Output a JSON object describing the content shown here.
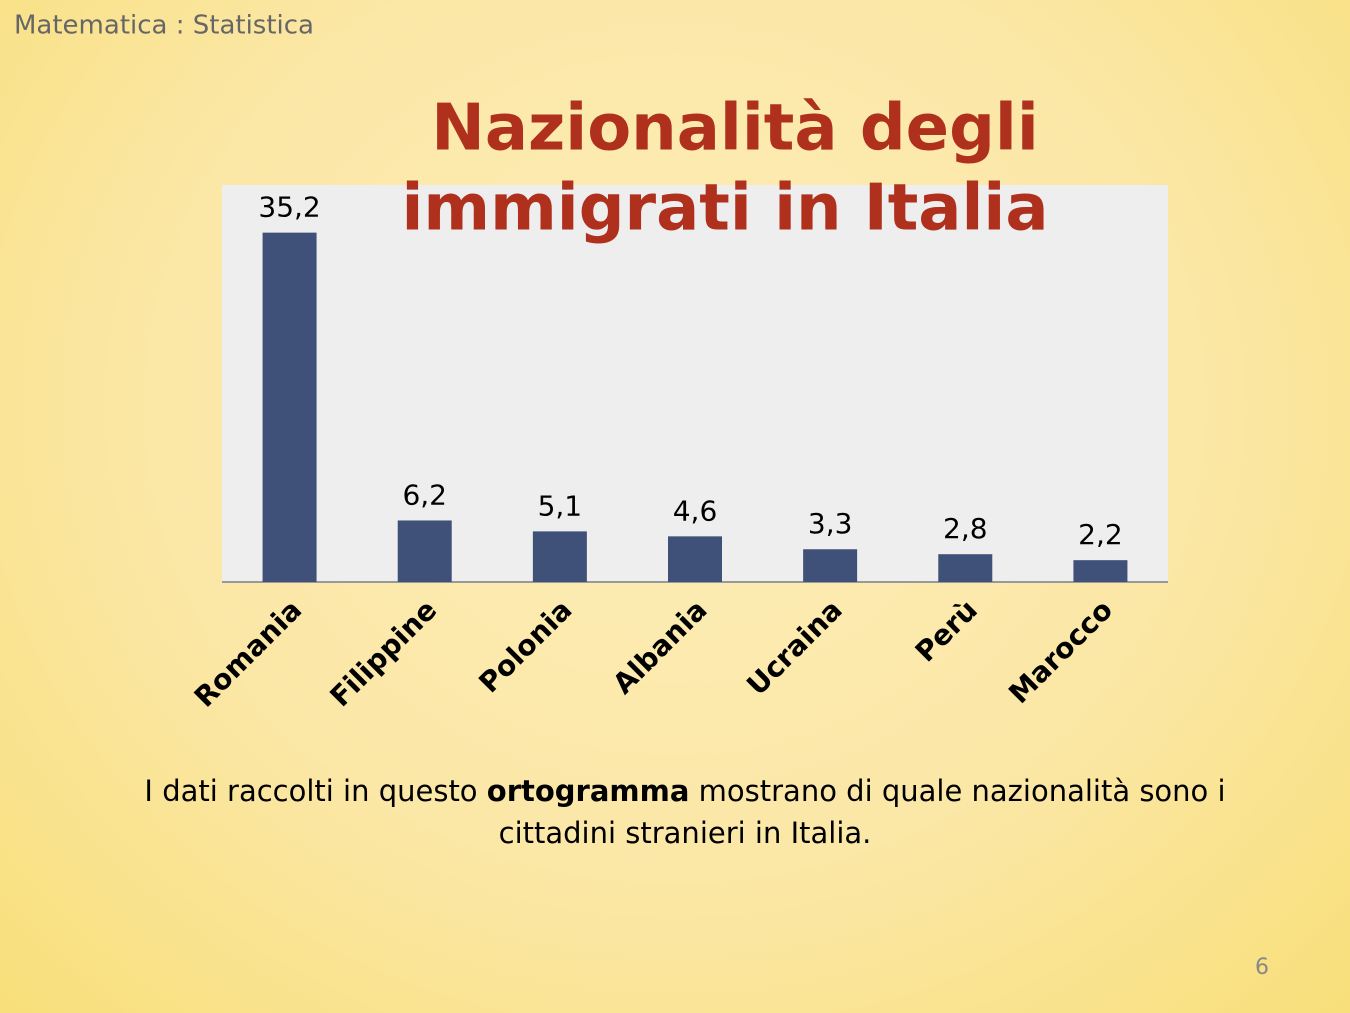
{
  "header": "Matematica : Statistica",
  "chart_data": {
    "type": "bar",
    "title": [
      "Nazionalità degli",
      "immigrati in Italia"
    ],
    "categories": [
      "Romania",
      "Filippine",
      "Polonia",
      "Albania",
      "Ucraina",
      "Perù",
      "Marocco"
    ],
    "values": [
      35.2,
      6.2,
      5.1,
      4.6,
      3.3,
      2.8,
      2.2
    ],
    "value_labels": [
      "35,2",
      "6,2",
      "5,1",
      "4,6",
      "3,3",
      "2,8",
      "2,2"
    ],
    "color": "#3f5079",
    "ylim": [
      0,
      40
    ]
  },
  "caption": [
    "I dati raccolti in questo ",
    "ortogramma",
    " mostrano di quale nazionalità sono i cittadini stranieri in Italia."
  ],
  "page_number": "6"
}
